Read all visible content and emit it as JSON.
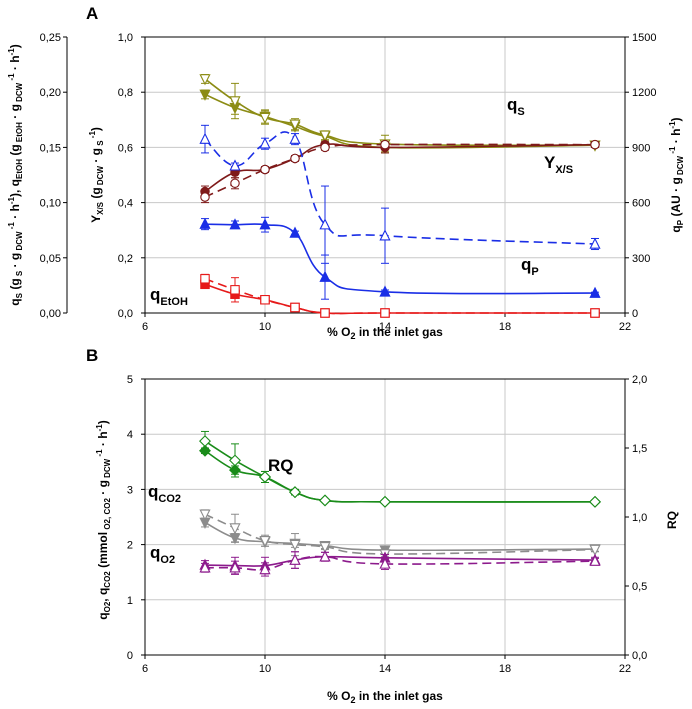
{
  "chart_data": [
    {
      "panel": "A",
      "type": "line",
      "xlabel": "% O2 in the inlet gas",
      "xlim": [
        6,
        22
      ],
      "xticks": [
        "6",
        "10",
        "14",
        "18",
        "22"
      ],
      "yaxes": {
        "left_outer": {
          "label": "qS (g S · g DCW⁻¹ · h⁻¹), qEtOH (g EtOH · g DCW⁻¹ · h⁻¹)",
          "ylim": [
            0,
            0.25
          ],
          "ticks": [
            "0,00",
            "0,05",
            "0,10",
            "0,15",
            "0,20",
            "0,25"
          ]
        },
        "left_inner": {
          "label": "YX/S (g DCW · g S⁻¹)",
          "ylim": [
            0,
            1.0
          ],
          "ticks": [
            "0,0",
            "0,2",
            "0,4",
            "0,6",
            "0,8",
            "1,0"
          ]
        },
        "right": {
          "label": "qP (AU · g DCW⁻¹ · h⁻¹)",
          "ylim": [
            0,
            1500
          ],
          "ticks": [
            "0",
            "300",
            "600",
            "900",
            "1200",
            "1500"
          ]
        }
      },
      "series": [
        {
          "name": "qS",
          "color": "#8c8c14",
          "axis": "left_outer",
          "x": [
            8,
            9,
            10,
            11,
            12,
            14,
            21
          ],
          "y": [
            0.198,
            0.186,
            0.178,
            0.169,
            0.16,
            0.15,
            0.152
          ],
          "err": [
            0.004,
            0.006,
            0.006,
            0.004,
            0.004,
            0.004,
            0.002
          ],
          "marker": "triangle-down",
          "filled": true,
          "dashed": false
        },
        {
          "name": "qS (open)",
          "color": "#8c8c14",
          "axis": "left_outer",
          "x": [
            8,
            9,
            10,
            11,
            12,
            14,
            21
          ],
          "y": [
            0.212,
            0.192,
            0.177,
            0.171,
            0.161,
            0.153,
            0.152
          ],
          "err": [
            0.004,
            0.016,
            0.006,
            0.005,
            0.004,
            0.008,
            0.002
          ],
          "marker": "triangle-down",
          "filled": false,
          "dashed": false
        },
        {
          "name": "YX/S",
          "color": "#7f1a1a",
          "axis": "left_inner",
          "x": [
            8,
            9,
            10,
            11,
            12,
            14,
            21
          ],
          "y": [
            0.44,
            0.51,
            0.52,
            0.56,
            0.61,
            0.6,
            0.61
          ],
          "err": [
            0.02,
            0.02,
            0.01,
            0.01,
            0.01,
            0.02,
            0.01
          ],
          "marker": "circle",
          "filled": true,
          "dashed": false
        },
        {
          "name": "YX/S (open)",
          "color": "#7f1a1a",
          "axis": "left_inner",
          "x": [
            8,
            9,
            10,
            11,
            12,
            14,
            21
          ],
          "y": [
            0.42,
            0.47,
            0.52,
            0.56,
            0.6,
            0.61,
            0.61
          ],
          "err": [
            0.02,
            0.02,
            0.01,
            0.01,
            0.01,
            0.01,
            0.01
          ],
          "marker": "circle",
          "filled": false,
          "dashed": true
        },
        {
          "name": "qP",
          "color": "#1a2ee6",
          "axis": "right",
          "x": [
            8,
            9,
            10,
            11,
            12,
            14,
            21
          ],
          "y": [
            483,
            480,
            480,
            435,
            195,
            115,
            108
          ],
          "err": [
            30,
            20,
            40,
            10,
            120,
            10,
            5
          ],
          "marker": "triangle-up",
          "filled": true,
          "dashed": false
        },
        {
          "name": "qP (open)",
          "color": "#1a2ee6",
          "axis": "right",
          "x": [
            8,
            9,
            10,
            11,
            12,
            14,
            21
          ],
          "y": [
            945,
            800,
            920,
            945,
            480,
            420,
            375
          ],
          "err": [
            75,
            15,
            30,
            30,
            210,
            150,
            30
          ],
          "marker": "triangle-up",
          "filled": false,
          "dashed": true
        },
        {
          "name": "qEtOH",
          "color": "#e61a1a",
          "axis": "left_outer",
          "x": [
            8,
            9,
            10,
            11,
            12,
            14,
            21
          ],
          "y": [
            0.026,
            0.017,
            0.012,
            0.005,
            0.0,
            0.0,
            0.0
          ],
          "err": [
            0.002,
            0.002,
            0.001,
            0.001,
            0,
            0,
            0
          ],
          "marker": "square",
          "filled": true,
          "dashed": false
        },
        {
          "name": "qEtOH (open)",
          "color": "#e61a1a",
          "axis": "left_outer",
          "x": [
            8,
            9,
            10,
            11,
            12,
            14,
            21
          ],
          "y": [
            0.031,
            0.021,
            0.012,
            0.005,
            0.0,
            0.0,
            0.0
          ],
          "err": [
            0.004,
            0.011,
            0.002,
            0.001,
            0,
            0,
            0
          ],
          "marker": "square",
          "filled": false,
          "dashed": true
        }
      ],
      "labels": {
        "qS": "q",
        "qS_sub": "S",
        "yxs": "Y",
        "yxs_sub": "X/S",
        "qP": "q",
        "qP_sub": "P",
        "qEtOH": "q",
        "qEtOH_sub": "EtOH"
      }
    },
    {
      "panel": "B",
      "type": "line",
      "xlabel": "% O2 in the inlet gas",
      "xlim": [
        6,
        22
      ],
      "xticks": [
        "6",
        "10",
        "14",
        "18",
        "22"
      ],
      "yaxes": {
        "left": {
          "label": "qO2, qCO2 (mmol O2, CO2 · g DCW⁻¹ · h⁻¹)",
          "ylim": [
            0,
            5
          ],
          "ticks": [
            "0",
            "1",
            "2",
            "3",
            "4",
            "5"
          ]
        },
        "right": {
          "label": "RQ",
          "ylim": [
            0,
            2.0
          ],
          "ticks": [
            "0,0",
            "0,5",
            "1,0",
            "1,5",
            "2,0"
          ]
        }
      },
      "series": [
        {
          "name": "RQ",
          "color": "#1a8c1a",
          "axis": "right",
          "x": [
            8,
            9,
            10,
            11,
            12,
            14,
            21
          ],
          "y": [
            1.48,
            1.34,
            1.29,
            1.18,
            1.12,
            1.11,
            1.11
          ],
          "err": [
            0.02,
            0.03,
            0.04,
            0.02,
            0.01,
            0.01,
            0.01
          ],
          "marker": "diamond",
          "filled": true,
          "dashed": false
        },
        {
          "name": "RQ (open)",
          "color": "#1a8c1a",
          "axis": "right",
          "x": [
            8,
            9,
            10,
            11,
            12,
            14,
            21
          ],
          "y": [
            1.55,
            1.41,
            1.29,
            1.18,
            1.12,
            1.11,
            1.11
          ],
          "err": [
            0.07,
            0.12,
            0.04,
            0.02,
            0.01,
            0.01,
            0.01
          ],
          "marker": "diamond",
          "filled": false,
          "dashed": false
        },
        {
          "name": "qCO2",
          "color": "#8c8c8c",
          "axis": "left",
          "x": [
            8,
            9,
            10,
            11,
            12,
            14,
            21
          ],
          "y": [
            2.4,
            2.12,
            2.05,
            2.02,
            1.98,
            1.9,
            1.92
          ],
          "err": [
            0.08,
            0.08,
            0.08,
            0.07,
            0.05,
            0.04,
            0.04
          ],
          "marker": "triangle-down",
          "filled": true,
          "dashed": false
        },
        {
          "name": "qCO2 (open)",
          "color": "#8c8c8c",
          "axis": "left",
          "x": [
            8,
            9,
            10,
            11,
            12,
            14,
            21
          ],
          "y": [
            2.55,
            2.3,
            2.07,
            2.0,
            1.96,
            1.83,
            1.91
          ],
          "err": [
            0.08,
            0.25,
            0.1,
            0.2,
            0.05,
            0.05,
            0.04
          ],
          "marker": "triangle-down",
          "filled": false,
          "dashed": true
        },
        {
          "name": "qO2",
          "color": "#8c1a8c",
          "axis": "left",
          "x": [
            8,
            9,
            10,
            11,
            12,
            14,
            21
          ],
          "y": [
            1.63,
            1.62,
            1.62,
            1.72,
            1.78,
            1.76,
            1.72
          ],
          "err": [
            0.08,
            0.15,
            0.15,
            0.15,
            0.08,
            0.06,
            0.05
          ],
          "marker": "triangle-up",
          "filled": true,
          "dashed": false
        },
        {
          "name": "qO2 (open)",
          "color": "#8c1a8c",
          "axis": "left",
          "x": [
            8,
            9,
            10,
            11,
            12,
            14,
            21
          ],
          "y": [
            1.58,
            1.58,
            1.55,
            1.72,
            1.78,
            1.65,
            1.7
          ],
          "err": [
            0.08,
            0.12,
            0.12,
            0.15,
            0.08,
            0.1,
            0.05
          ],
          "marker": "triangle-up",
          "filled": false,
          "dashed": true
        }
      ],
      "labels": {
        "rq": "RQ",
        "qCO2": "q",
        "qCO2_sub": "CO2",
        "qO2": "q",
        "qO2_sub": "O2"
      }
    }
  ]
}
